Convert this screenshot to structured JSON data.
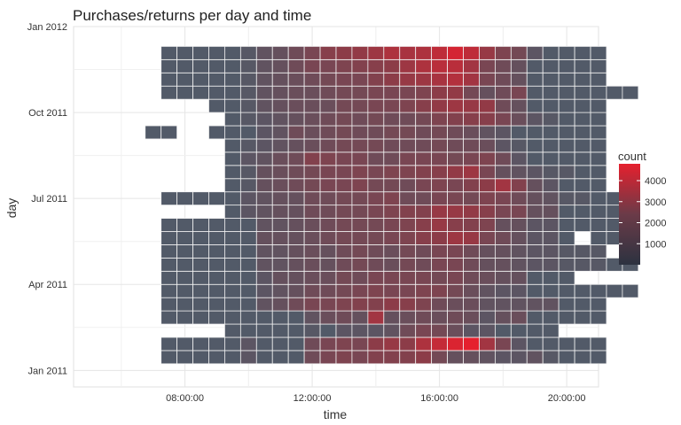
{
  "chart_data": {
    "type": "heatmap",
    "title": "Purchases/returns per day and time",
    "xlabel": "time",
    "ylabel": "day",
    "x_ticks": [
      "08:00:00",
      "12:00:00",
      "16:00:00",
      "20:00:00"
    ],
    "y_ticks": [
      "Jan 2011",
      "Apr 2011",
      "Jul 2011",
      "Oct 2011",
      "Jan 2012"
    ],
    "x_range_hours": [
      4.5,
      21.0
    ],
    "y_range_weeks": [
      -2.5,
      52.0
    ],
    "grid": true,
    "legend": {
      "title": "count",
      "position": "right",
      "labels": [
        "1000",
        "2000",
        "3000",
        "4000"
      ],
      "values": [
        1000,
        2000,
        3000,
        4000
      ],
      "range": [
        0,
        4800
      ],
      "colors": {
        "low": "#2c3240",
        "mid": "#6b3b48",
        "high": "#e5202e"
      }
    },
    "tile_base_color": "#525a68",
    "tile_border_color": "#f2f2f2",
    "hour_start": 6.0,
    "hour_step": 0.5,
    "week_start": 0,
    "week_step": 2,
    "rows": [
      [
        0,
        0,
        0,
        0,
        0,
        0,
        0,
        0,
        0,
        0,
        0,
        0,
        0,
        0,
        0,
        0,
        0,
        0,
        0,
        0,
        0,
        0,
        0,
        0,
        0,
        0,
        0,
        0,
        0,
        0,
        0,
        0,
        0
      ],
      [
        0,
        0,
        0,
        1,
        1,
        1,
        1,
        0.6,
        1.2,
        1,
        1,
        1,
        1.6,
        1.8,
        1.9,
        1.8,
        2,
        2,
        2,
        2.2,
        1.7,
        1.4,
        1.4,
        1.3,
        1.2,
        1.2,
        1.3,
        1.1,
        1.0,
        0.9,
        0.8,
        0,
        0
      ],
      [
        0,
        0,
        0,
        1,
        1,
        1,
        1,
        0.6,
        1.2,
        1,
        1,
        1,
        1.6,
        1.8,
        1.9,
        1.8,
        2.2,
        2.4,
        2.2,
        2.8,
        3.2,
        3.6,
        3.8,
        2.6,
        1.8,
        1.2,
        1.0,
        1.0,
        1.0,
        0.9,
        0.9,
        0,
        0
      ],
      [
        0,
        0,
        0,
        0,
        0,
        0,
        0,
        0.5,
        0.8,
        0.8,
        0.8,
        0.9,
        1.1,
        1.0,
        1.2,
        1.2,
        1.2,
        1.3,
        1.6,
        1.8,
        1.7,
        1.5,
        1.2,
        1.2,
        0.9,
        0.8,
        0.7,
        0.7,
        0,
        0,
        0,
        0,
        0
      ],
      [
        0,
        0,
        0,
        1,
        1,
        1,
        1,
        0.6,
        0.8,
        1,
        1,
        1,
        1.3,
        1.5,
        1.6,
        1.4,
        2.6,
        1.4,
        1.5,
        1.6,
        1.5,
        1.6,
        1.5,
        1.2,
        1.4,
        1.5,
        0.7,
        0.6,
        0.6,
        0.6,
        0.6,
        0,
        0
      ],
      [
        0,
        0,
        0,
        1,
        1,
        1,
        1,
        0.8,
        1,
        1.3,
        1.4,
        1.6,
        1.8,
        1.8,
        1.9,
        2,
        2,
        2.2,
        2.1,
        1.9,
        1.6,
        1.5,
        1.5,
        1.3,
        1.3,
        1.3,
        1.3,
        1.3,
        0.6,
        0.6,
        0.6,
        0,
        0
      ],
      [
        0,
        0,
        0,
        1,
        1,
        1,
        1,
        0.8,
        1,
        1.2,
        1.3,
        1.4,
        1.6,
        1.6,
        1.7,
        1.8,
        1.9,
        1.8,
        1.8,
        1.9,
        1.9,
        1.7,
        1.5,
        1.3,
        1.2,
        1.2,
        0.9,
        0.8,
        0.8,
        0.8,
        0.8,
        0.8,
        0.8
      ],
      [
        0,
        0,
        0,
        1,
        1,
        1,
        1,
        1,
        1,
        1.2,
        1.4,
        1.4,
        1.5,
        1.5,
        1.7,
        1.6,
        1.8,
        1.8,
        1.8,
        1.8,
        1.7,
        1.8,
        1.6,
        1.5,
        1.4,
        1.4,
        0.9,
        0.9,
        0.9,
        0,
        0,
        0,
        0
      ],
      [
        0,
        0,
        0,
        1,
        1,
        1,
        1,
        1,
        1,
        1.3,
        1.3,
        1.4,
        1.5,
        1.4,
        1.6,
        1.7,
        1.6,
        1.5,
        1.7,
        1.6,
        1.8,
        1.8,
        1.6,
        1.4,
        1.4,
        1.3,
        1.2,
        1.2,
        1.1,
        1.1,
        1.1,
        1,
        1
      ],
      [
        0,
        0,
        0,
        1,
        1,
        1,
        1,
        1,
        1,
        1.3,
        1.3,
        1.4,
        1.5,
        1.4,
        1.6,
        1.7,
        1.6,
        1.5,
        1.7,
        1.6,
        1.8,
        1.8,
        1.6,
        1.4,
        1.4,
        1.3,
        1.2,
        1.2,
        1.1,
        1.1,
        1.1,
        0,
        0
      ],
      [
        0,
        0,
        0,
        1,
        1,
        1,
        1,
        1,
        1,
        1.4,
        1.4,
        1.4,
        1.5,
        1.6,
        1.7,
        1.7,
        1.7,
        1.8,
        1.9,
        2.1,
        2.2,
        2.5,
        2.4,
        1.8,
        1.6,
        1.4,
        1.2,
        1.2,
        0.9,
        0,
        1,
        1,
        1
      ],
      [
        0,
        0,
        0,
        1,
        1,
        1,
        1,
        1,
        1,
        1.3,
        1.3,
        1.4,
        1.5,
        1.6,
        1.7,
        1.7,
        1.7,
        1.8,
        1.9,
        2.1,
        2.4,
        2.1,
        2,
        1.9,
        1.4,
        1.4,
        1.2,
        1.2,
        0.9,
        0.9,
        1,
        1,
        1
      ],
      [
        0,
        0,
        0,
        0,
        0,
        0,
        0,
        1,
        1.2,
        1.3,
        1.4,
        1.4,
        1.6,
        1.6,
        1.7,
        1.7,
        1.8,
        1.9,
        2,
        2,
        2.4,
        2.4,
        2.3,
        2.1,
        1.8,
        1.8,
        1.4,
        1.4,
        1,
        1,
        1,
        1,
        1
      ],
      [
        0,
        0,
        0,
        1,
        1,
        1,
        1,
        1,
        1.2,
        1.3,
        1.4,
        1.4,
        1.6,
        1.6,
        1.7,
        1.7,
        1.8,
        1.9,
        1.6,
        1.6,
        1.8,
        1.8,
        1.7,
        1.9,
        1.8,
        1.6,
        1.4,
        1.3,
        1.1,
        1.1,
        1,
        1,
        1
      ],
      [
        0,
        0,
        0,
        0,
        0,
        0,
        0,
        1,
        1.1,
        1.4,
        1.5,
        1.6,
        1.7,
        1.8,
        1.8,
        1.9,
        1.7,
        1.7,
        1.6,
        1.8,
        1.9,
        1.8,
        2,
        2.2,
        2.6,
        2,
        1.4,
        1.2,
        1.0,
        0.9,
        0.8,
        0,
        0
      ],
      [
        0,
        0,
        0,
        0,
        0,
        0,
        0,
        1,
        1.1,
        1.4,
        1.5,
        1.6,
        1.7,
        1.8,
        1.8,
        1.9,
        1.8,
        1.9,
        1.9,
        2,
        2.1,
        2.3,
        2.5,
        1.8,
        1.4,
        1.3,
        1.2,
        1.1,
        1.1,
        1,
        1,
        0,
        0
      ],
      [
        0,
        0,
        0,
        0,
        0,
        0,
        0,
        1,
        1.2,
        1.3,
        1.5,
        1.6,
        2.0,
        1.9,
        1.8,
        1.8,
        1.6,
        1.6,
        1.8,
        1.8,
        1.8,
        1.7,
        1.8,
        1.9,
        1.6,
        1.2,
        1.0,
        1.0,
        0.9,
        0.9,
        0.9,
        0,
        0
      ],
      [
        0,
        0,
        0,
        0,
        0,
        0,
        0,
        1,
        1.1,
        1.2,
        1.3,
        1.4,
        1.5,
        1.6,
        1.7,
        1.7,
        1.7,
        1.6,
        1.6,
        1.6,
        1.7,
        1.6,
        1.6,
        1.5,
        1.2,
        1.1,
        0.9,
        0.9,
        0.8,
        0.8,
        0.8,
        0,
        0
      ],
      [
        0,
        0,
        1,
        1,
        0,
        0,
        1,
        1,
        1,
        1.2,
        1.3,
        1.6,
        1.5,
        1.6,
        1.7,
        1.6,
        1.6,
        1.7,
        1.7,
        1.6,
        1.7,
        1.6,
        1.5,
        1.3,
        1.2,
        1.0,
        1.0,
        1.0,
        0.9,
        0.9,
        0.9,
        0,
        0
      ],
      [
        0,
        0,
        0,
        0,
        0,
        0,
        0,
        1,
        1.1,
        1.2,
        1.3,
        1.4,
        1.5,
        1.6,
        1.7,
        1.6,
        1.7,
        1.6,
        1.6,
        1.7,
        1.9,
        2,
        2.1,
        2.1,
        1.8,
        1.5,
        1.2,
        1.1,
        1,
        0.9,
        0.9,
        0,
        0
      ],
      [
        0,
        0,
        0,
        0,
        0,
        0,
        1,
        1,
        1.1,
        1.3,
        1.4,
        1.5,
        1.5,
        1.5,
        1.7,
        1.7,
        1.8,
        1.8,
        1.9,
        2.1,
        2.3,
        2.5,
        2.4,
        2.3,
        1.6,
        1.4,
        1.0,
        0.9,
        0.8,
        0.8,
        0.8,
        0,
        0
      ],
      [
        0,
        0,
        0,
        1,
        1,
        1,
        1,
        1,
        1.1,
        1.3,
        1.4,
        1.5,
        1.5,
        1.6,
        1.7,
        1.7,
        1.8,
        1.8,
        1.8,
        1.9,
        2.2,
        2.3,
        1.7,
        1.4,
        1.6,
        1.8,
        1.0,
        0.9,
        0.8,
        0.8,
        0.8,
        0.8,
        0.8
      ],
      [
        0,
        0,
        0,
        1,
        1,
        1,
        1,
        1,
        1.1,
        1.3,
        1.4,
        1.5,
        1.6,
        1.7,
        1.8,
        1.8,
        2,
        2.2,
        2.4,
        2.5,
        2.7,
        2.9,
        2.6,
        1.8,
        1.6,
        1.4,
        1.0,
        0.9,
        0.8,
        0.8,
        0.8,
        0,
        0
      ],
      [
        0,
        0,
        0,
        1,
        1,
        1,
        1,
        1,
        1.1,
        1.3,
        1.4,
        1.6,
        1.8,
        1.8,
        1.9,
        2,
        2.1,
        2.2,
        2.5,
        2.8,
        3.0,
        3.0,
        2.6,
        1.8,
        1.6,
        1.4,
        1.0,
        0.9,
        0.8,
        0.8,
        0.8,
        0,
        0
      ],
      [
        0,
        0,
        0,
        1,
        1,
        1,
        1,
        1,
        1.1,
        1.3,
        1.4,
        1.6,
        1.8,
        2.1,
        2.2,
        2.3,
        2.5,
        2.8,
        2.7,
        2.8,
        3.1,
        3.5,
        3.1,
        2.4,
        1.9,
        1.7,
        1.2,
        1.0,
        0.9,
        0.8,
        0.8,
        0,
        0
      ],
      [
        0,
        0,
        0,
        0,
        0,
        0,
        0,
        0,
        0,
        0,
        0,
        0,
        0,
        0,
        0,
        0,
        0,
        0,
        0,
        0,
        0,
        0,
        0,
        0,
        0,
        0,
        0,
        0,
        0,
        0,
        0,
        0,
        0
      ]
    ]
  }
}
